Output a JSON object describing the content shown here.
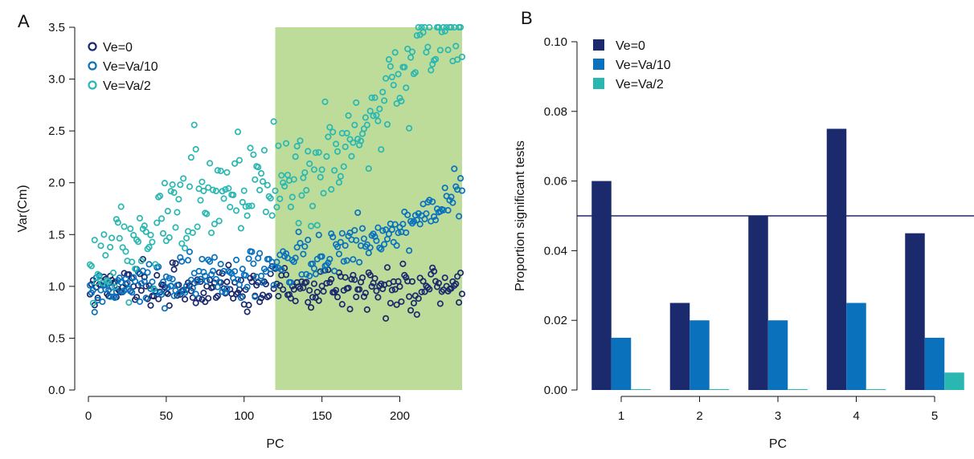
{
  "panels": {
    "a": {
      "letter": "A"
    },
    "b": {
      "letter": "B"
    }
  },
  "chart_data": [
    {
      "type": "scatter",
      "xlabel": "PC",
      "ylabel": "Var(Cm)",
      "xlim": [
        0,
        240
      ],
      "ylim": [
        0,
        3.5
      ],
      "xticks": [
        0,
        50,
        100,
        150,
        200
      ],
      "yticks": [
        0.0,
        0.5,
        1.0,
        1.5,
        2.0,
        2.5,
        3.0,
        3.5
      ],
      "ytick_labels": [
        "0.0",
        "0.5",
        "1.0",
        "1.5",
        "2.0",
        "2.5",
        "3.0",
        "3.5"
      ],
      "highlight_region": {
        "x": [
          120,
          240
        ],
        "color": "#bddc9a"
      },
      "legend_position": "top-left",
      "grid": false,
      "n_points_per_series": 240,
      "series": [
        {
          "name": "Ve=0",
          "color": "#1a2a6c",
          "trend": [
            [
              1,
              1.0
            ],
            [
              120,
              1.0
            ],
            [
              240,
              1.0
            ]
          ],
          "spread": 0.1
        },
        {
          "name": "Ve=Va/10",
          "color": "#0a72bd",
          "trend": [
            [
              1,
              0.9
            ],
            [
              60,
              1.1
            ],
            [
              120,
              1.2
            ],
            [
              180,
              1.4
            ],
            [
              240,
              1.9
            ]
          ],
          "spread": 0.12
        },
        {
          "name": "Ve=Va/2",
          "color": "#2ab7b1",
          "trend": [
            [
              1,
              1.05
            ],
            [
              30,
              1.5
            ],
            [
              60,
              1.7
            ],
            [
              100,
              1.95
            ],
            [
              120,
              1.9
            ],
            [
              150,
              2.15
            ],
            [
              180,
              2.6
            ],
            [
              210,
              3.3
            ],
            [
              240,
              3.5
            ]
          ],
          "spread": 0.22
        }
      ]
    },
    {
      "type": "bar",
      "xlabel": "PC",
      "ylabel": "Proportion significant tests",
      "categories": [
        "1",
        "2",
        "3",
        "4",
        "5"
      ],
      "ylim": [
        0,
        0.1
      ],
      "yticks": [
        0.0,
        0.02,
        0.04,
        0.06,
        0.08,
        0.1
      ],
      "ytick_labels": [
        "0.00",
        "0.02",
        "0.04",
        "0.06",
        "0.08",
        "0.10"
      ],
      "reference_line": 0.05,
      "legend_position": "top-left",
      "grid": false,
      "series": [
        {
          "name": "Ve=0",
          "color": "#1a2a6c",
          "values": [
            0.06,
            0.025,
            0.05,
            0.075,
            0.045
          ]
        },
        {
          "name": "Ve=Va/10",
          "color": "#0a72bd",
          "values": [
            0.015,
            0.02,
            0.02,
            0.025,
            0.015
          ]
        },
        {
          "name": "Ve=Va/2",
          "color": "#2ab7b1",
          "values": [
            0.0,
            0.0,
            0.0,
            0.0,
            0.005
          ]
        }
      ]
    }
  ]
}
